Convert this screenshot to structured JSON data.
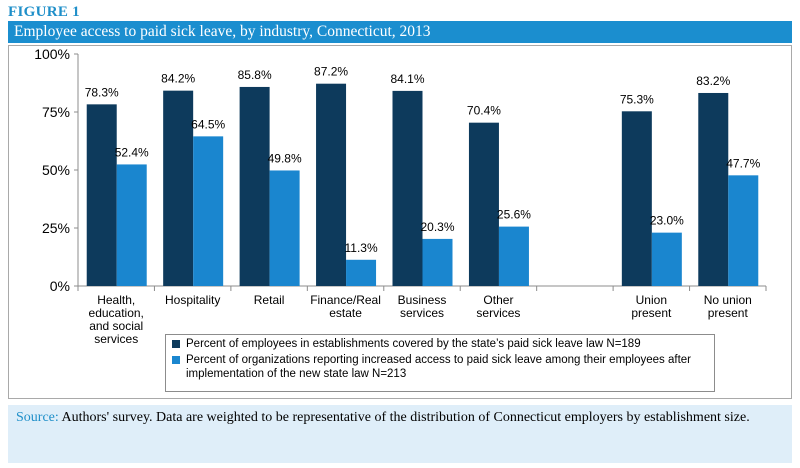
{
  "figure_label": "FIGURE 1",
  "title": "Employee access to paid sick leave, by industry, Connecticut, 2013",
  "colors": {
    "series1": "#0d3a5c",
    "series2": "#1a86cf",
    "title_bar": "#1b8ecf",
    "source_bg": "#dfeef9"
  },
  "chart_data": {
    "type": "bar",
    "categories": [
      [
        "Health,",
        "education,",
        "and social",
        "services"
      ],
      [
        "Hospitality"
      ],
      [
        "Retail"
      ],
      [
        "Finance/Real",
        "estate"
      ],
      [
        "Business",
        "services"
      ],
      [
        "Other",
        "services"
      ],
      [],
      [
        "Union",
        "present"
      ],
      [
        "No union",
        "present"
      ]
    ],
    "series": [
      {
        "name": "Percent of employees in establishments covered by the state’s paid sick leave law N=189",
        "values": [
          78.3,
          84.2,
          85.8,
          87.2,
          84.1,
          70.4,
          null,
          75.3,
          83.2
        ],
        "labels": [
          "78.3%",
          "84.2%",
          "85.8%",
          "87.2%",
          "84.1%",
          "70.4%",
          null,
          "75.3%",
          "83.2%"
        ]
      },
      {
        "name": "Percent of organizations reporting increased access to paid sick leave among their employees after implementation of the new state law N=213",
        "values": [
          52.4,
          64.5,
          49.8,
          11.3,
          20.3,
          25.6,
          null,
          23.0,
          47.7
        ],
        "labels": [
          "52.4%",
          "64.5%",
          "49.8%",
          "11.3%",
          "20.3%",
          "25.6%",
          null,
          "23.0%",
          "47.7%"
        ]
      }
    ],
    "yticks": [
      "0%",
      "25%",
      "50%",
      "75%",
      "100%"
    ],
    "ylim": [
      0,
      100
    ],
    "grid": false,
    "legend_position": "bottom"
  },
  "legend": {
    "item1": "Percent of employees in establishments covered by the state’s paid sick leave law N=189",
    "item2": "Percent of organizations reporting increased access to paid sick leave among their employees after implementation of the new state law N=213"
  },
  "source": {
    "label": "Source:",
    "text": " Authors' survey.  Data are weighted to be representative of the distribution of Connecticut employers by establishment size."
  }
}
